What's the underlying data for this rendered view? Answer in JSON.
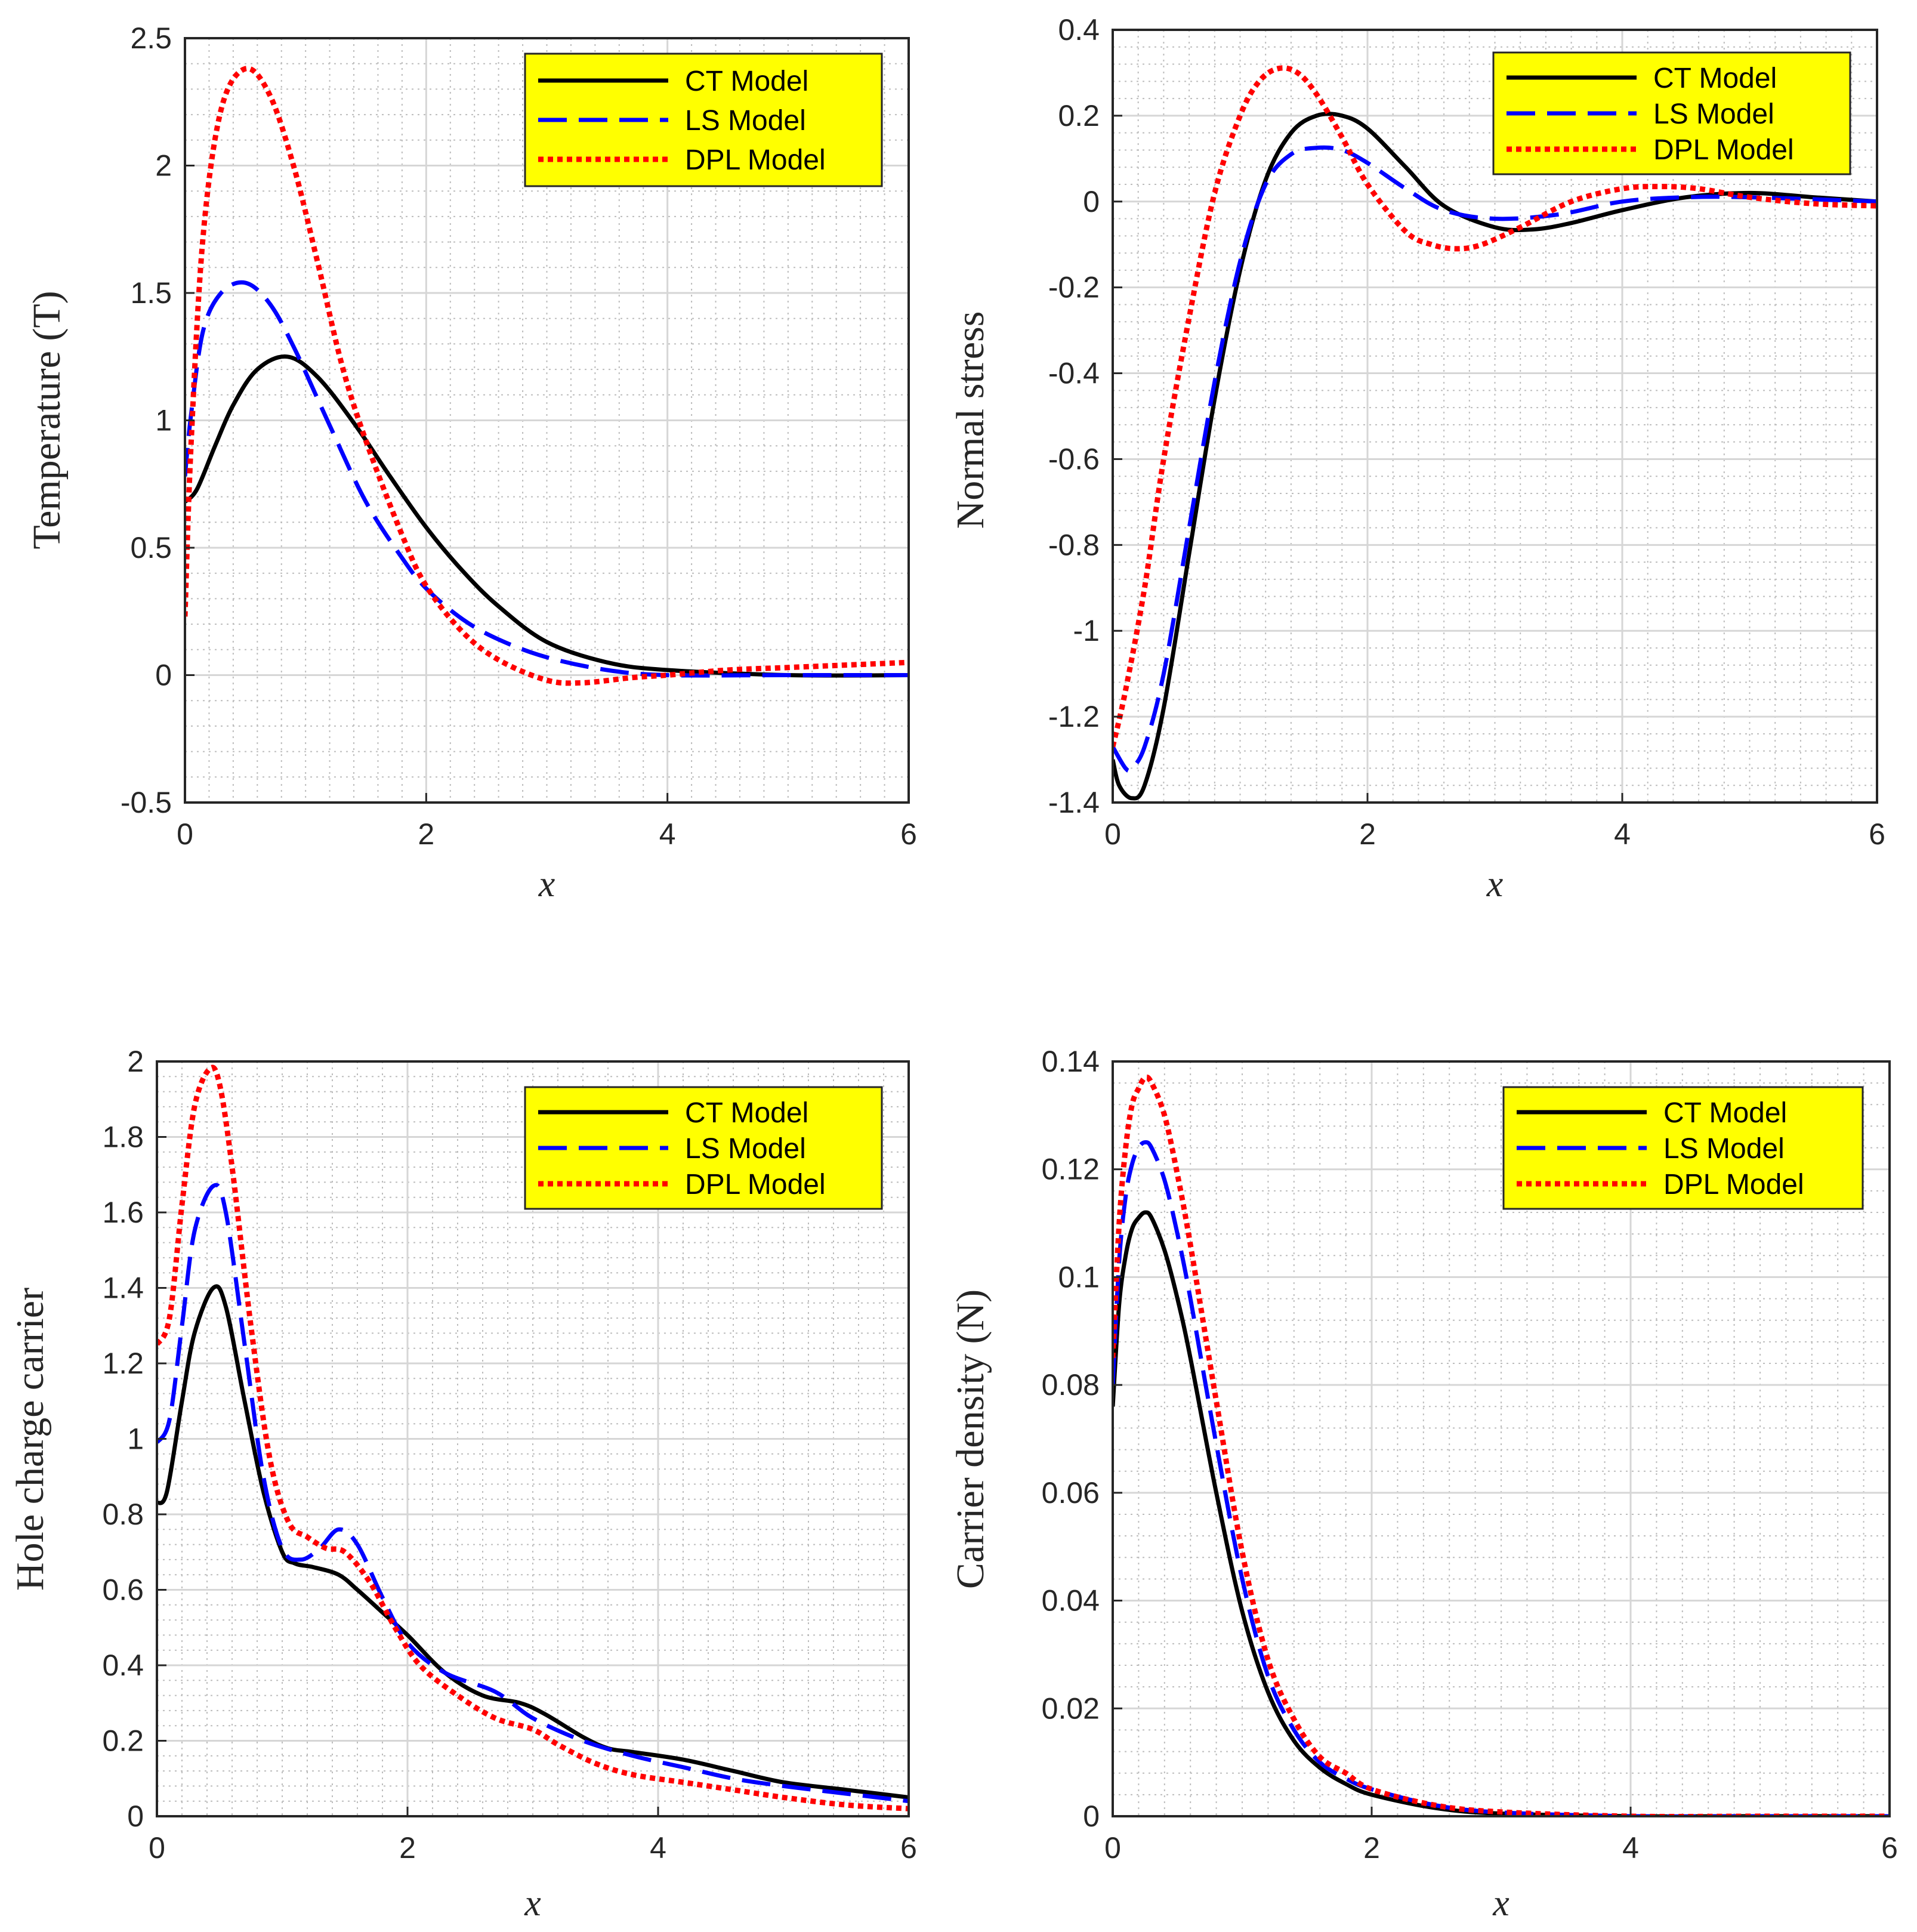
{
  "colors": {
    "ct": "#000000",
    "ls": "#0000ff",
    "dpl": "#ff0000",
    "legend_bg": "#ffff00",
    "axis": "#262626",
    "grid": "#bdbdbd"
  },
  "chart_data": [
    {
      "type": "line",
      "xlabel": "x",
      "ylabel": "Temperature (T)",
      "xlim": [
        0,
        6
      ],
      "ylim": [
        -0.5,
        2.5
      ],
      "xticks": [
        0,
        2,
        4,
        6
      ],
      "yticks": [
        -0.5,
        0,
        0.5,
        1,
        1.5,
        2,
        2.5
      ],
      "ytick_labels": [
        "-0.5",
        "0",
        "0.5",
        "1",
        "1.5",
        "2",
        "2.5"
      ],
      "grid": true,
      "legend_position": "top-right",
      "series": [
        {
          "name": "CT Model",
          "x": [
            0,
            0.1,
            0.25,
            0.4,
            0.6,
            0.85,
            1.1,
            1.4,
            1.7,
            2.0,
            2.3,
            2.6,
            3.0,
            3.5,
            4.0,
            5.0,
            6.0
          ],
          "y": [
            0.68,
            0.73,
            0.9,
            1.06,
            1.2,
            1.25,
            1.17,
            0.99,
            0.78,
            0.58,
            0.41,
            0.27,
            0.13,
            0.05,
            0.02,
            0.0,
            0.0
          ]
        },
        {
          "name": "LS Model",
          "x": [
            0,
            0.05,
            0.15,
            0.3,
            0.5,
            0.7,
            0.9,
            1.2,
            1.5,
            1.8,
            2.0,
            2.3,
            2.6,
            3.0,
            3.5,
            4.0,
            5.0,
            6.0
          ],
          "y": [
            0.78,
            1.02,
            1.35,
            1.5,
            1.54,
            1.46,
            1.29,
            0.98,
            0.68,
            0.46,
            0.34,
            0.22,
            0.14,
            0.07,
            0.02,
            0.0,
            0.0,
            0.0
          ]
        },
        {
          "name": "DPL Model",
          "x": [
            0,
            0.05,
            0.15,
            0.3,
            0.5,
            0.7,
            0.9,
            1.1,
            1.3,
            1.5,
            1.8,
            2.0,
            2.3,
            2.6,
            3.0,
            3.3,
            3.7,
            4.0,
            4.5,
            5.0,
            6.0
          ],
          "y": [
            0.23,
            0.9,
            1.72,
            2.22,
            2.38,
            2.28,
            2.0,
            1.62,
            1.22,
            0.92,
            0.55,
            0.35,
            0.17,
            0.06,
            -0.02,
            -0.03,
            -0.01,
            0.0,
            0.02,
            0.03,
            0.05
          ]
        }
      ]
    },
    {
      "type": "line",
      "xlabel": "x",
      "ylabel": "Normal stress",
      "xlim": [
        0,
        6
      ],
      "ylim": [
        -1.4,
        0.4
      ],
      "xticks": [
        0,
        2,
        4,
        6
      ],
      "yticks": [
        -1.4,
        -1.2,
        -1,
        -0.8,
        -0.6,
        -0.4,
        -0.2,
        0,
        0.2,
        0.4
      ],
      "ytick_labels": [
        "-1.4",
        "-1.2",
        "-1",
        "-0.8",
        "-0.6",
        "-0.4",
        "-0.2",
        "0",
        "0.2",
        "0.4"
      ],
      "grid": true,
      "legend_position": "top-right",
      "series": [
        {
          "name": "CT Model",
          "x": [
            0,
            0.05,
            0.15,
            0.25,
            0.4,
            0.6,
            0.8,
            1.0,
            1.2,
            1.4,
            1.6,
            1.8,
            2.0,
            2.3,
            2.6,
            3.0,
            3.3,
            3.6,
            4.0,
            4.5,
            5.0,
            5.5,
            6.0
          ],
          "y": [
            -1.3,
            -1.36,
            -1.39,
            -1.36,
            -1.18,
            -0.82,
            -0.46,
            -0.16,
            0.05,
            0.16,
            0.2,
            0.2,
            0.17,
            0.08,
            -0.01,
            -0.06,
            -0.065,
            -0.05,
            -0.02,
            0.01,
            0.02,
            0.01,
            0.0
          ]
        },
        {
          "name": "LS Model",
          "x": [
            0,
            0.1,
            0.15,
            0.25,
            0.4,
            0.6,
            0.8,
            1.0,
            1.2,
            1.4,
            1.6,
            1.8,
            2.0,
            2.3,
            2.6,
            3.0,
            3.5,
            4.0,
            4.5,
            5.0,
            6.0
          ],
          "y": [
            -1.27,
            -1.32,
            -1.32,
            -1.27,
            -1.1,
            -0.76,
            -0.42,
            -0.14,
            0.04,
            0.11,
            0.125,
            0.12,
            0.09,
            0.03,
            -0.02,
            -0.04,
            -0.03,
            0.0,
            0.01,
            0.01,
            0.0
          ]
        },
        {
          "name": "DPL Model",
          "x": [
            0,
            0.1,
            0.25,
            0.4,
            0.6,
            0.8,
            1.0,
            1.15,
            1.3,
            1.45,
            1.6,
            1.8,
            2.0,
            2.3,
            2.5,
            2.7,
            2.9,
            3.2,
            3.6,
            4.0,
            4.3,
            4.6,
            5.0,
            5.5,
            6.0
          ],
          "y": [
            -1.27,
            -1.14,
            -0.9,
            -0.6,
            -0.27,
            0.02,
            0.2,
            0.28,
            0.31,
            0.3,
            0.25,
            0.15,
            0.04,
            -0.07,
            -0.1,
            -0.11,
            -0.1,
            -0.06,
            0.0,
            0.03,
            0.035,
            0.03,
            0.01,
            -0.005,
            -0.01
          ]
        }
      ]
    },
    {
      "type": "line",
      "xlabel": "x",
      "ylabel": "Hole charge carrier",
      "xlim": [
        0,
        6
      ],
      "ylim": [
        0,
        2
      ],
      "xticks": [
        0,
        2,
        4,
        6
      ],
      "yticks": [
        0,
        0.2,
        0.4,
        0.6,
        0.8,
        1,
        1.2,
        1.4,
        1.6,
        1.8,
        2
      ],
      "ytick_labels": [
        "0",
        "0.2",
        "0.4",
        "0.6",
        "0.8",
        "1",
        "1.2",
        "1.4",
        "1.6",
        "1.8",
        "2"
      ],
      "grid": true,
      "legend_position": "top-right",
      "series": [
        {
          "name": "CT Model",
          "x": [
            0,
            0.08,
            0.2,
            0.3,
            0.45,
            0.55,
            0.7,
            0.85,
            1.0,
            1.1,
            1.25,
            1.45,
            1.6,
            1.8,
            2.0,
            2.3,
            2.6,
            2.9,
            3.1,
            3.4,
            3.6,
            3.8,
            4.2,
            4.6,
            5.0,
            5.5,
            6.0
          ],
          "y": [
            0.83,
            0.86,
            1.1,
            1.28,
            1.4,
            1.35,
            1.1,
            0.86,
            0.7,
            0.67,
            0.66,
            0.64,
            0.6,
            0.54,
            0.48,
            0.38,
            0.32,
            0.3,
            0.27,
            0.21,
            0.18,
            0.17,
            0.15,
            0.12,
            0.09,
            0.07,
            0.05
          ]
        },
        {
          "name": "LS Model",
          "x": [
            0,
            0.1,
            0.2,
            0.3,
            0.45,
            0.55,
            0.7,
            0.85,
            1.0,
            1.15,
            1.3,
            1.45,
            1.6,
            1.8,
            2.0,
            2.3,
            2.7,
            3.0,
            3.4,
            3.8,
            4.2,
            4.6,
            5.0,
            5.5,
            6.0
          ],
          "y": [
            0.99,
            1.05,
            1.3,
            1.55,
            1.67,
            1.6,
            1.25,
            0.9,
            0.71,
            0.68,
            0.71,
            0.76,
            0.72,
            0.58,
            0.46,
            0.38,
            0.33,
            0.26,
            0.2,
            0.16,
            0.13,
            0.1,
            0.08,
            0.06,
            0.04
          ]
        },
        {
          "name": "DPL Model",
          "x": [
            0,
            0.1,
            0.2,
            0.3,
            0.42,
            0.5,
            0.6,
            0.75,
            0.9,
            1.05,
            1.2,
            1.35,
            1.5,
            1.7,
            1.9,
            2.1,
            2.4,
            2.7,
            3.0,
            3.2,
            3.5,
            3.8,
            4.2,
            4.6,
            5.0,
            5.5,
            6.0
          ],
          "y": [
            1.25,
            1.32,
            1.62,
            1.88,
            1.98,
            1.94,
            1.72,
            1.3,
            0.95,
            0.78,
            0.74,
            0.71,
            0.7,
            0.62,
            0.5,
            0.4,
            0.32,
            0.26,
            0.23,
            0.19,
            0.14,
            0.11,
            0.09,
            0.07,
            0.05,
            0.03,
            0.02
          ]
        }
      ]
    },
    {
      "type": "line",
      "xlabel": "x",
      "ylabel": "Carrier density (N)",
      "xlim": [
        0,
        6
      ],
      "ylim": [
        0,
        0.14
      ],
      "xticks": [
        0,
        2,
        4,
        6
      ],
      "yticks": [
        0,
        0.02,
        0.04,
        0.06,
        0.08,
        0.1,
        0.12,
        0.14
      ],
      "ytick_labels": [
        "0",
        "0.02",
        "0.04",
        "0.06",
        "0.08",
        "0.1",
        "0.12",
        "0.14"
      ],
      "grid": true,
      "legend_position": "top-right",
      "series": [
        {
          "name": "CT Model",
          "x": [
            0,
            0.05,
            0.1,
            0.15,
            0.2,
            0.25,
            0.3,
            0.4,
            0.5,
            0.6,
            0.8,
            1.0,
            1.2,
            1.4,
            1.6,
            1.8,
            2.0,
            2.5,
            3.0,
            4.0,
            5.0,
            6.0
          ],
          "y": [
            0.076,
            0.095,
            0.104,
            0.109,
            0.111,
            0.112,
            0.111,
            0.105,
            0.096,
            0.085,
            0.06,
            0.038,
            0.023,
            0.014,
            0.009,
            0.006,
            0.004,
            0.0015,
            0.0005,
            0.0,
            0.0,
            0.0
          ]
        },
        {
          "name": "LS Model",
          "x": [
            0,
            0.05,
            0.1,
            0.15,
            0.2,
            0.25,
            0.3,
            0.4,
            0.5,
            0.6,
            0.8,
            1.0,
            1.2,
            1.4,
            1.6,
            1.8,
            2.0,
            2.5,
            3.0,
            4.0,
            5.0,
            6.0
          ],
          "y": [
            0.08,
            0.103,
            0.115,
            0.121,
            0.124,
            0.125,
            0.124,
            0.118,
            0.108,
            0.096,
            0.069,
            0.044,
            0.026,
            0.016,
            0.01,
            0.007,
            0.005,
            0.002,
            0.0007,
            0.0,
            0.0,
            0.0
          ]
        },
        {
          "name": "DPL Model",
          "x": [
            0,
            0.05,
            0.1,
            0.15,
            0.2,
            0.25,
            0.3,
            0.4,
            0.5,
            0.6,
            0.8,
            1.0,
            1.2,
            1.4,
            1.6,
            1.8,
            2.0,
            2.5,
            3.0,
            4.0,
            5.0,
            6.0
          ],
          "y": [
            0.085,
            0.11,
            0.124,
            0.132,
            0.135,
            0.137,
            0.136,
            0.13,
            0.119,
            0.106,
            0.077,
            0.049,
            0.029,
            0.018,
            0.011,
            0.008,
            0.005,
            0.002,
            0.0008,
            0.0,
            0.0,
            0.0
          ]
        }
      ]
    }
  ]
}
